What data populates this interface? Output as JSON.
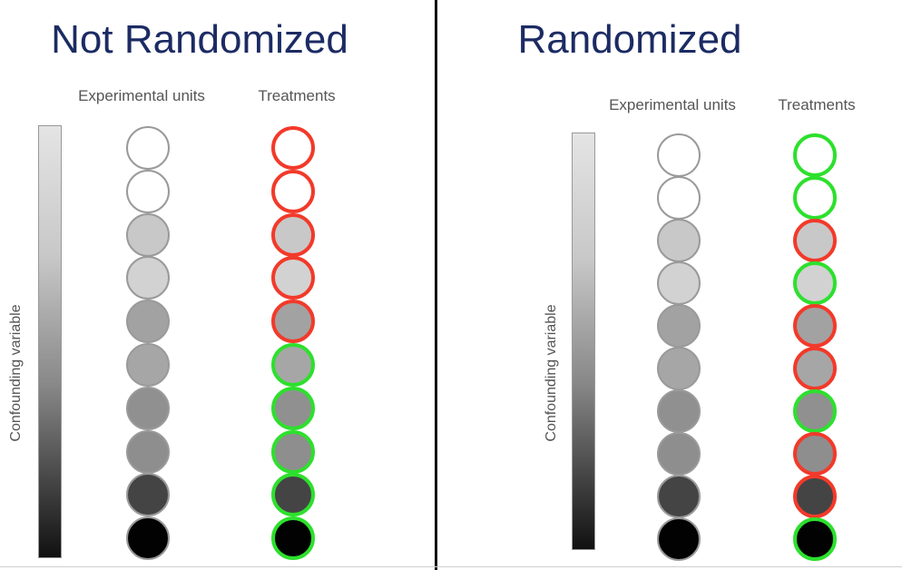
{
  "panels": [
    {
      "title": "Not Randomized",
      "units_label": "Experimental units",
      "treatments_label": "Treatments",
      "axis_label": "Confounding variable",
      "unit_fills": [
        "#ffffff",
        "#ffffff",
        "#c8c8c8",
        "#d2d2d2",
        "#a2a2a2",
        "#a6a6a6",
        "#909090",
        "#8e8e8e",
        "#444444",
        "#020202"
      ],
      "treatment_colors": [
        "red",
        "red",
        "red",
        "red",
        "red",
        "green",
        "green",
        "green",
        "green",
        "green"
      ]
    },
    {
      "title": "Randomized",
      "units_label": "Experimental units",
      "treatments_label": "Treatments",
      "axis_label": "Confounding variable",
      "unit_fills": [
        "#ffffff",
        "#ffffff",
        "#c8c8c8",
        "#d2d2d2",
        "#a2a2a2",
        "#a6a6a6",
        "#909090",
        "#8e8e8e",
        "#444444",
        "#020202"
      ],
      "treatment_colors": [
        "green",
        "green",
        "red",
        "green",
        "red",
        "red",
        "green",
        "red",
        "red",
        "green"
      ]
    }
  ],
  "colors": {
    "red": "#f23a2a",
    "green": "#2de02d",
    "title": "#1c2b63"
  }
}
